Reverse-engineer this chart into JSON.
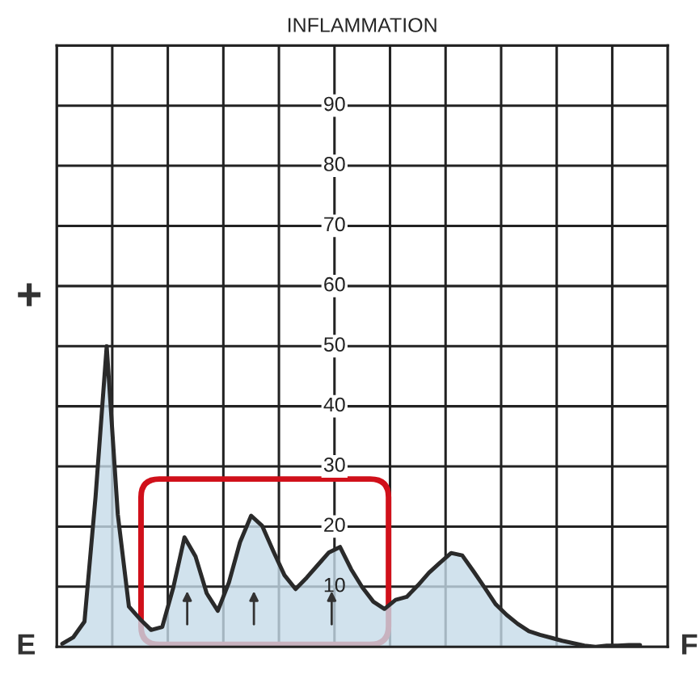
{
  "chart_data": {
    "type": "area",
    "title": "INFLAMMATION",
    "categories": [
      null,
      null,
      null,
      null,
      null,
      null,
      null,
      null,
      null,
      null,
      null,
      null,
      null,
      null,
      null,
      null,
      null,
      null,
      null,
      null,
      null,
      null,
      null,
      null,
      null,
      null,
      null,
      null,
      null,
      null,
      null,
      null,
      null,
      null,
      null,
      null,
      null,
      null,
      null,
      null,
      null,
      null,
      null,
      null,
      null,
      null,
      null,
      null,
      null,
      null,
      null,
      null,
      null
    ],
    "series": [
      {
        "color": "#c6dbe8",
        "values": [
          0.5,
          1.6,
          4.2,
          25,
          50,
          22,
          6.7,
          4.6,
          2.8,
          3.3,
          9.9,
          18.2,
          15,
          8.9,
          6,
          10.7,
          17.4,
          21.8,
          20.1,
          15.9,
          11.9,
          9.6,
          11.5,
          13.6,
          15.7,
          16.6,
          12.9,
          9.9,
          7.5,
          6.3,
          7.8,
          8.3,
          10.2,
          12.3,
          14,
          15.6,
          15.2,
          12.6,
          9.9,
          7.1,
          5.3,
          3.8,
          2.6,
          2,
          1.5,
          1,
          0.6,
          0.2,
          0,
          0.2,
          0.2,
          0.3,
          0.3
        ]
      }
    ],
    "ylim": [
      0,
      100
    ],
    "yticks": [
      {
        "value": 0,
        "label": null
      },
      10,
      20,
      30,
      40,
      50,
      60,
      70,
      80,
      90,
      {
        "value": 100,
        "label": null
      }
    ],
    "grid": true,
    "tick_labels": "y",
    "annotations": [
      "E",
      "F",
      "+"
    ]
  }
}
